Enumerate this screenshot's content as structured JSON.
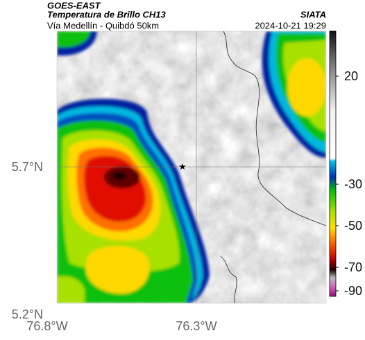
{
  "header": {
    "title": "GOES-EAST",
    "subtitle": "Temperatura de Brillo CH13",
    "source": "SIATA",
    "route": "Vía Medellín - Quibdó 50km",
    "timestamp": "2024-10-21 19:29"
  },
  "map": {
    "yticks": [
      "5.7°N",
      "5.2°N"
    ],
    "xticks": [
      "76.8°W",
      "76.3°W"
    ]
  },
  "colorbar": {
    "ticks": [
      20,
      -30,
      -50,
      -70,
      -90
    ]
  }
}
